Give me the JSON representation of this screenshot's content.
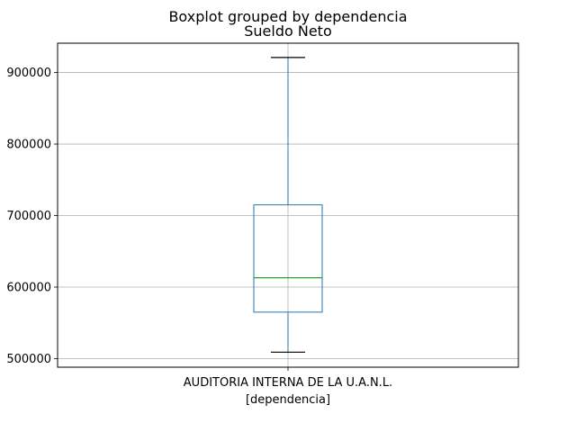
{
  "chart_data": {
    "type": "boxplot",
    "suptitle": "Boxplot grouped by dependencia",
    "title": "Sueldo Neto",
    "xlabel": "[dependencia]",
    "ylabel": "",
    "categories": [
      "AUDITORIA INTERNA DE LA U.A.N.L."
    ],
    "boxes": [
      {
        "category": "AUDITORIA INTERNA DE LA U.A.N.L.",
        "whisker_low": 509000,
        "q1": 565000,
        "median": 613000,
        "q3": 715000,
        "whisker_high": 921000
      }
    ],
    "ylim": [
      488000,
      941000
    ],
    "yticks": [
      500000,
      600000,
      700000,
      800000,
      900000
    ],
    "ytick_labels": [
      "500000",
      "600000",
      "700000",
      "800000",
      "900000"
    ],
    "grid": true,
    "colors": {
      "box": "#1f77b4",
      "median": "#2ca02c",
      "whisker": "#1f77b4",
      "grid": "#b0b0b0"
    }
  }
}
